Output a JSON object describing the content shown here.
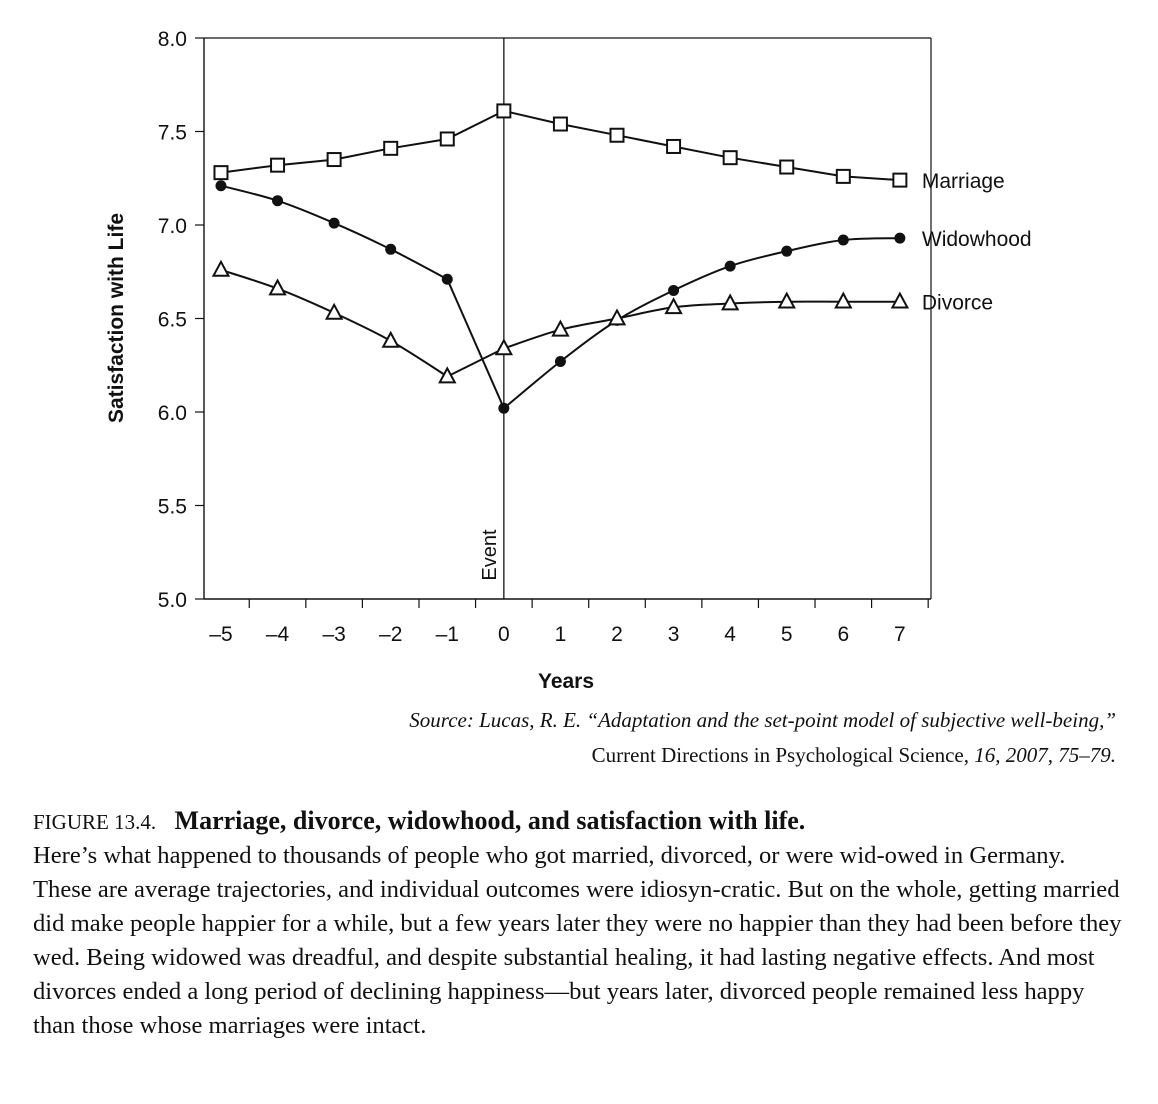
{
  "chart_data": {
    "type": "line",
    "title": "",
    "xlabel": "Years",
    "ylabel": "Satisfaction with Life",
    "x": [
      -5,
      -4,
      -3,
      -2,
      -1,
      0,
      1,
      2,
      3,
      4,
      5,
      6,
      7
    ],
    "x_tick_labels": [
      "–5",
      "–4",
      "–3",
      "–2",
      "–1",
      "0",
      "1",
      "2",
      "3",
      "4",
      "5",
      "6",
      "7"
    ],
    "xlim": [
      -5.3,
      7.55
    ],
    "ylim": [
      5.0,
      8.0
    ],
    "y_ticks": [
      5.0,
      5.5,
      6.0,
      6.5,
      7.0,
      7.5,
      8.0
    ],
    "y_tick_labels": [
      "5.0",
      "5.5",
      "6.0",
      "6.5",
      "7.0",
      "7.5",
      "8.0"
    ],
    "grid": false,
    "event_line": {
      "x": 0,
      "label": "Event"
    },
    "series": [
      {
        "name": "Marriage",
        "marker": "square",
        "values": [
          7.28,
          7.32,
          7.35,
          7.41,
          7.46,
          7.61,
          7.54,
          7.48,
          7.42,
          7.36,
          7.31,
          7.26,
          7.24
        ]
      },
      {
        "name": "Widowhood",
        "marker": "circle",
        "values": [
          7.21,
          7.13,
          7.01,
          6.87,
          6.71,
          6.02,
          6.27,
          6.49,
          6.65,
          6.78,
          6.86,
          6.92,
          6.93
        ]
      },
      {
        "name": "Divorce",
        "marker": "triangle",
        "values": [
          6.76,
          6.66,
          6.53,
          6.38,
          6.19,
          6.34,
          6.44,
          6.5,
          6.56,
          6.58,
          6.59,
          6.59,
          6.59
        ]
      }
    ]
  },
  "source": {
    "line1": "Source: Lucas, R. E. “Adaptation and the set-point model of subjective well-being,”",
    "journal": "Current Directions in Psychological Science,",
    "details": " 16, 2007, 75–79."
  },
  "caption": {
    "number": "FIGURE 13.4.",
    "title": "Marriage, divorce, widowhood, and satisfaction with life.",
    "body": "Here’s what happened to thousands of people who got married, divorced, or were wid-owed in Germany. These are average trajectories, and individual outcomes were idiosyn-cratic. But on the whole, getting married did make people happier for a while, but a few years later they were no happier than they had been before they wed. Being widowed was dreadful, and despite substantial healing, it had lasting negative effects. And most divorces ended a long period of declining happiness—but years later, divorced people remained less happy than those whose marriages were intact."
  }
}
